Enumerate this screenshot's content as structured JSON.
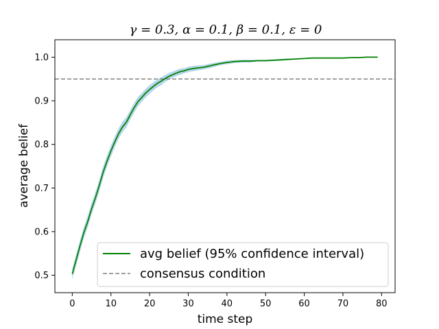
{
  "chart_data": {
    "type": "line",
    "title": "γ = 0.3, α = 0.1, β = 0.1, ε = 0",
    "xlabel": "time step",
    "ylabel": "average belief",
    "xlim": [
      -4.5,
      83.5
    ],
    "ylim": [
      0.46,
      1.04
    ],
    "xticks": [
      0,
      10,
      20,
      30,
      40,
      50,
      60,
      70,
      80
    ],
    "yticks": [
      0.5,
      0.6,
      0.7,
      0.8,
      0.9,
      1.0
    ],
    "xtick_labels": [
      "0",
      "10",
      "20",
      "30",
      "40",
      "50",
      "60",
      "70",
      "80"
    ],
    "ytick_labels": [
      "0.5",
      "0.6",
      "0.7",
      "0.8",
      "0.9",
      "1.0"
    ],
    "grid": false,
    "legend_position": "lower-right",
    "series": [
      {
        "name": "avg belief (95% confidence interval)",
        "color": "#008000",
        "band_color": "#b7d6ea",
        "x": [
          0,
          1,
          2,
          3,
          4,
          5,
          6,
          7,
          8,
          9,
          10,
          11,
          12,
          13,
          14,
          15,
          16,
          17,
          18,
          19,
          20,
          21,
          22,
          23,
          24,
          25,
          26,
          27,
          28,
          29,
          30,
          32,
          34,
          36,
          38,
          40,
          42,
          44,
          46,
          48,
          50,
          52,
          54,
          56,
          58,
          60,
          62,
          64,
          66,
          68,
          70,
          72,
          74,
          76,
          78,
          79
        ],
        "y": [
          0.503,
          0.535,
          0.567,
          0.598,
          0.623,
          0.652,
          0.678,
          0.706,
          0.737,
          0.762,
          0.785,
          0.806,
          0.825,
          0.84,
          0.851,
          0.868,
          0.884,
          0.898,
          0.908,
          0.918,
          0.926,
          0.933,
          0.94,
          0.945,
          0.951,
          0.956,
          0.96,
          0.964,
          0.967,
          0.969,
          0.972,
          0.975,
          0.977,
          0.981,
          0.985,
          0.988,
          0.99,
          0.991,
          0.991,
          0.992,
          0.992,
          0.993,
          0.994,
          0.995,
          0.996,
          0.997,
          0.998,
          0.998,
          0.998,
          0.998,
          0.998,
          0.999,
          0.999,
          1.0,
          1.0,
          1.0
        ],
        "ci_halfwidth": [
          0.012,
          0.013,
          0.013,
          0.013,
          0.013,
          0.013,
          0.013,
          0.013,
          0.013,
          0.013,
          0.013,
          0.012,
          0.012,
          0.012,
          0.012,
          0.011,
          0.011,
          0.011,
          0.01,
          0.01,
          0.01,
          0.009,
          0.009,
          0.009,
          0.008,
          0.008,
          0.007,
          0.007,
          0.007,
          0.006,
          0.006,
          0.006,
          0.005,
          0.005,
          0.004,
          0.004,
          0.003,
          0.003,
          0.003,
          0.002,
          0.002,
          0.002,
          0.002,
          0.002,
          0.001,
          0.001,
          0.001,
          0.001,
          0.001,
          0.001,
          0.001,
          0.001,
          0.001,
          0.001,
          0.001,
          0.001
        ]
      },
      {
        "name": "consensus condition",
        "color": "#808080",
        "dashed": true,
        "y_const": 0.95
      }
    ]
  }
}
